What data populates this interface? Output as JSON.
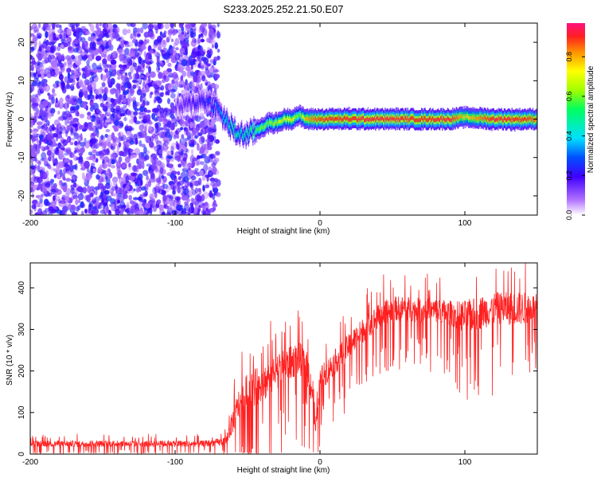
{
  "title": "S233.2025.252.21.50.E07",
  "chart_data": [
    {
      "type": "heatmap",
      "name": "spectrogram",
      "xlabel": "Height of straight line (km)",
      "ylabel": "Frequency (Hz)",
      "xlim": [
        -200,
        150
      ],
      "ylim": [
        -25,
        25
      ],
      "xticks": [
        -200,
        -100,
        0,
        100
      ],
      "yticks": [
        -20,
        -10,
        0,
        10,
        20
      ],
      "colorbar": {
        "label": "Normalized spectral amplitude",
        "range": [
          0,
          0.97
        ],
        "ticks": [
          0.0,
          0.2,
          0.4,
          0.6,
          0.8
        ],
        "tick_labels": [
          "0.0",
          "0.2",
          "0.4",
          "0.6",
          "0.8"
        ],
        "colors": [
          "#ffffff",
          "#b070ff",
          "#4000ff",
          "#0050ff",
          "#00e0ff",
          "#00ff60",
          "#a0ff00",
          "#ffff00",
          "#ff9000",
          "#ff2020",
          "#ff1080"
        ]
      },
      "regions": [
        {
          "desc": "broadband noise",
          "x": [
            -200,
            -70
          ],
          "freq": [
            -25,
            25
          ],
          "amplitude": [
            0.05,
            0.25
          ]
        },
        {
          "desc": "transition",
          "x": [
            -70,
            -45
          ],
          "freq_center": [
            3,
            -5
          ],
          "amplitude": [
            0.2,
            0.55
          ]
        },
        {
          "desc": "main line",
          "x": [
            -45,
            150
          ],
          "freq_center": [
            -3,
            0
          ],
          "amplitude": [
            0.5,
            0.95
          ]
        }
      ],
      "ridge": {
        "x": [
          -100,
          -90,
          -80,
          -72,
          -68,
          -64,
          -60,
          -55,
          -50,
          -45,
          -40,
          -35,
          -30,
          -25,
          -20,
          -15,
          -10,
          -5,
          0,
          10,
          20,
          30,
          50,
          70,
          90,
          100,
          120,
          140,
          150
        ],
        "freq": [
          3,
          4,
          5,
          3,
          1,
          -1,
          -3,
          -4,
          -4,
          -3,
          -2,
          -1,
          -1,
          0,
          0,
          1,
          0,
          0,
          0,
          0,
          0,
          0,
          0,
          0,
          0,
          0.5,
          0,
          0,
          0
        ],
        "amplitude": [
          0.15,
          0.2,
          0.25,
          0.3,
          0.35,
          0.45,
          0.5,
          0.45,
          0.5,
          0.55,
          0.6,
          0.6,
          0.65,
          0.7,
          0.75,
          0.55,
          0.8,
          0.85,
          0.88,
          0.9,
          0.9,
          0.92,
          0.92,
          0.9,
          0.92,
          0.75,
          0.92,
          0.9,
          0.85
        ]
      }
    },
    {
      "type": "line",
      "name": "snr",
      "xlabel": "Height of straight line (km)",
      "ylabel": "SNR (10 * v/v)",
      "xlim": [
        -200,
        150
      ],
      "ylim": [
        0,
        460
      ],
      "xticks": [
        -200,
        -100,
        0,
        100
      ],
      "yticks": [
        0,
        100,
        200,
        300,
        400
      ],
      "color": "#ff0000",
      "series": [
        {
          "name": "SNR",
          "x": [
            -200,
            -150,
            -100,
            -80,
            -65,
            -60,
            -55,
            -50,
            -45,
            -40,
            -35,
            -30,
            -25,
            -20,
            -15,
            -10,
            -5,
            -3,
            0,
            5,
            10,
            20,
            30,
            40,
            50,
            60,
            70,
            80,
            90,
            100,
            110,
            120,
            130,
            140,
            150
          ],
          "y": [
            25,
            25,
            25,
            25,
            30,
            80,
            130,
            150,
            160,
            170,
            180,
            200,
            210,
            220,
            230,
            220,
            150,
            60,
            180,
            200,
            220,
            260,
            300,
            330,
            350,
            350,
            345,
            345,
            340,
            330,
            340,
            350,
            350,
            350,
            355
          ],
          "noise_amplitude": [
            15,
            15,
            15,
            15,
            20,
            60,
            80,
            90,
            90,
            90,
            90,
            90,
            80,
            80,
            80,
            80,
            80,
            60,
            60,
            60,
            60,
            60,
            60,
            60,
            60,
            60,
            60,
            60,
            60,
            80,
            80,
            80,
            80,
            80,
            60
          ]
        }
      ]
    }
  ]
}
